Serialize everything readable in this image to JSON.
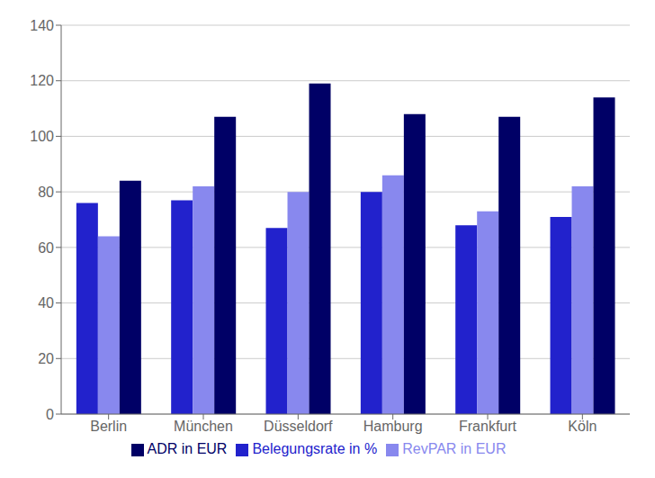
{
  "chart_data": {
    "type": "bar",
    "categories": [
      "Berlin",
      "München",
      "Düsseldorf",
      "Hamburg",
      "Frankfurt",
      "Köln"
    ],
    "series": [
      {
        "name": "Belegungsrate in %",
        "values": [
          76,
          77,
          67,
          80,
          68,
          71
        ],
        "color": "#2222CC"
      },
      {
        "name": "RevPAR in EUR",
        "values": [
          64,
          82,
          80,
          86,
          73,
          82
        ],
        "color": "#8888EE"
      },
      {
        "name": "ADR in EUR",
        "values": [
          84,
          107,
          119,
          108,
          107,
          114
        ],
        "color": "#000066"
      }
    ],
    "ylim": [
      0,
      140
    ],
    "yticks": [
      0,
      20,
      40,
      60,
      80,
      100,
      120,
      140
    ],
    "grid": true,
    "legend": "bottom"
  }
}
